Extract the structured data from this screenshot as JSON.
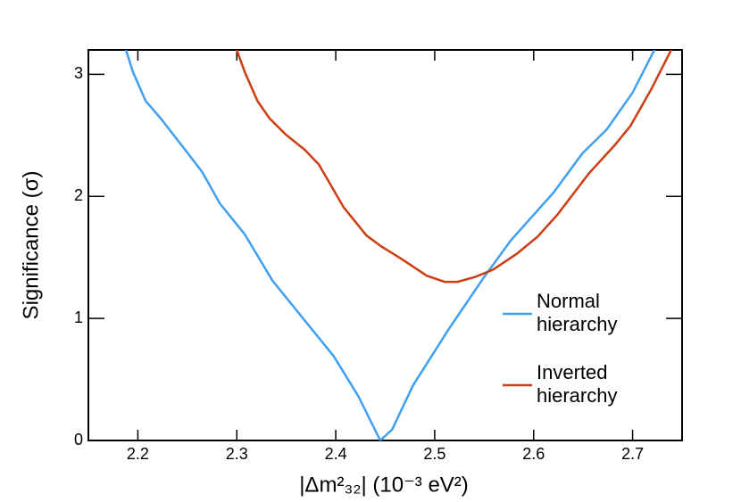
{
  "chart_data": {
    "type": "line",
    "x_label": "|Δm²₃₂| (10⁻³ eV²)",
    "y_label": "Significance (σ)",
    "xlim": [
      2.15,
      2.75
    ],
    "xticks": [
      2.2,
      2.3,
      2.4,
      2.5,
      2.6,
      2.7
    ],
    "ylim": [
      0,
      3.2
    ],
    "yticks": [
      0,
      1,
      2,
      3
    ],
    "legend": "lower right",
    "series": [
      {
        "name": "Normal hierarchy",
        "color": "#3f9ff0",
        "x": [
          2.188,
          2.195,
          2.208,
          2.223,
          2.247,
          2.265,
          2.283,
          2.308,
          2.336,
          2.371,
          2.398,
          2.423,
          2.445,
          2.457,
          2.478,
          2.514,
          2.55,
          2.577,
          2.62,
          2.649,
          2.674,
          2.7,
          2.722
        ],
        "values": [
          3.2,
          3.02,
          2.78,
          2.64,
          2.39,
          2.2,
          1.94,
          1.69,
          1.31,
          0.96,
          0.69,
          0.36,
          0,
          0.09,
          0.45,
          0.91,
          1.34,
          1.64,
          2.03,
          2.35,
          2.55,
          2.85,
          3.2
        ]
      },
      {
        "name": "Inverted hierarchy",
        "color": "#cc3d12",
        "x": [
          2.3,
          2.308,
          2.321,
          2.333,
          2.349,
          2.369,
          2.383,
          2.408,
          2.431,
          2.446,
          2.466,
          2.492,
          2.51,
          2.523,
          2.541,
          2.559,
          2.583,
          2.604,
          2.624,
          2.656,
          2.682,
          2.698,
          2.719,
          2.739
        ],
        "values": [
          3.2,
          3.02,
          2.78,
          2.64,
          2.51,
          2.38,
          2.26,
          1.91,
          1.68,
          1.59,
          1.49,
          1.35,
          1.3,
          1.3,
          1.34,
          1.4,
          1.53,
          1.67,
          1.85,
          2.19,
          2.42,
          2.58,
          2.88,
          3.2
        ]
      }
    ]
  }
}
